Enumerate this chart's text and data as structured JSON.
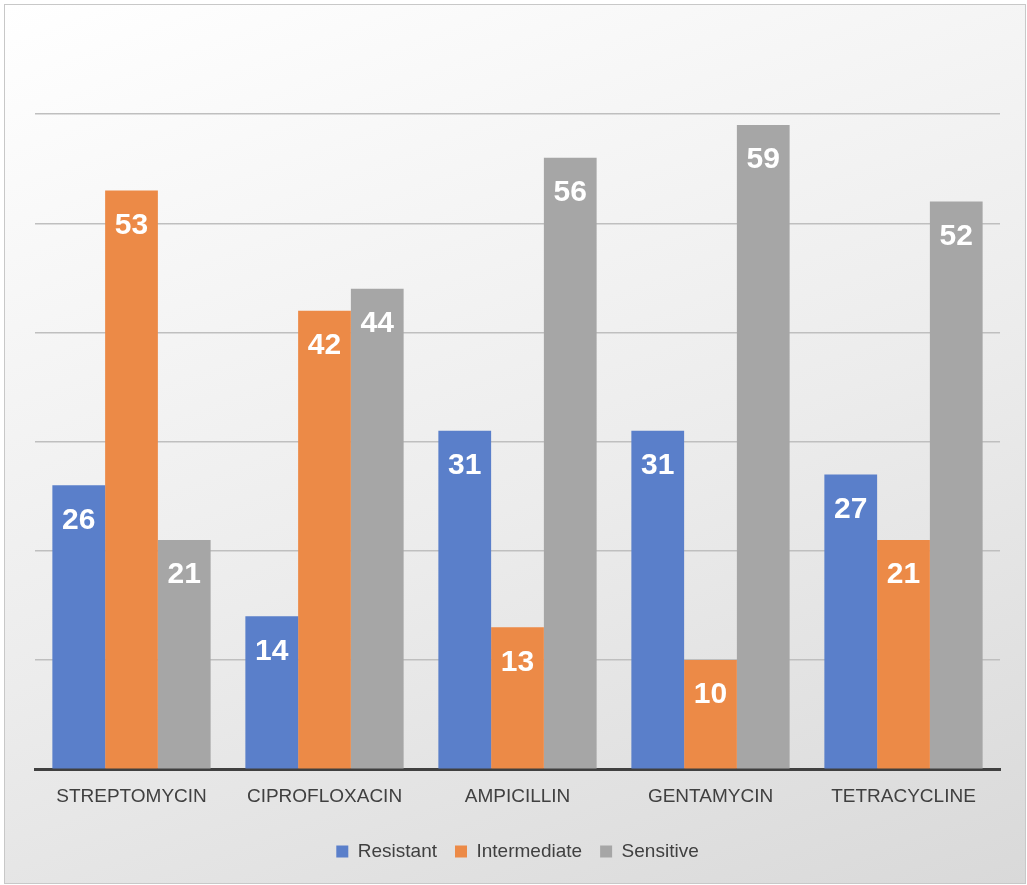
{
  "chart_data": {
    "type": "bar",
    "categories": [
      "STREPTOMYCIN",
      "CIPROFLOXACIN",
      "AMPICILLIN",
      "GENTAMYCIN",
      "TETRACYCLINE"
    ],
    "series": [
      {
        "name": "Resistant",
        "color": "#5a7fca",
        "values": [
          26,
          14,
          31,
          31,
          27
        ]
      },
      {
        "name": "Intermediate",
        "color": "#ec8a47",
        "values": [
          53,
          42,
          13,
          10,
          21
        ]
      },
      {
        "name": "Sensitive",
        "color": "#a6a6a6",
        "values": [
          21,
          44,
          56,
          59,
          52
        ]
      }
    ],
    "ylim": [
      0,
      70
    ],
    "yticks": [
      {
        "value": 0,
        "label": null
      },
      {
        "value": 10,
        "label": null
      },
      {
        "value": 20,
        "label": null
      },
      {
        "value": 30,
        "label": null
      },
      {
        "value": 40,
        "label": null
      },
      {
        "value": 50,
        "label": null
      },
      {
        "value": 60,
        "label": null
      }
    ],
    "grid": "y",
    "legend": "bottom",
    "tick_labels": "x",
    "data_labels": true
  }
}
